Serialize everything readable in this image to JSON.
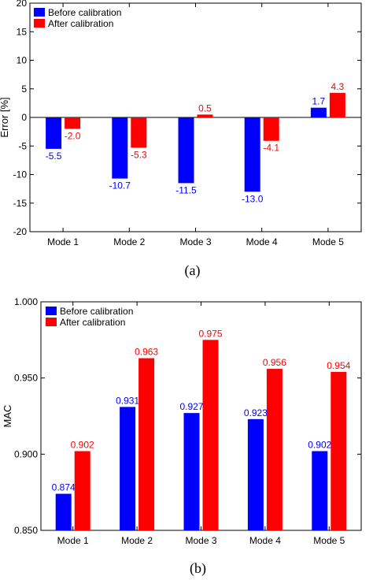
{
  "colors": {
    "before": "#0000ff",
    "after": "#ff0000"
  },
  "chart_data": [
    {
      "type": "bar",
      "caption": "(a)",
      "ylabel": "Error [%]",
      "ylim": [
        -20,
        20
      ],
      "yticks": [
        20,
        15,
        10,
        5,
        0,
        -5,
        -10,
        -15,
        -20
      ],
      "ytick_labels": [
        "20",
        "15",
        "10",
        "5",
        "0",
        "-5",
        "-10",
        "-15",
        "-20"
      ],
      "categories": [
        "Mode 1",
        "Mode 2",
        "Mode 3",
        "Mode 4",
        "Mode 5"
      ],
      "series": [
        {
          "name": "Before calibration",
          "values": [
            -5.5,
            -10.7,
            -11.5,
            -13.0,
            1.7
          ],
          "labels": [
            "-5.5",
            "-10.7",
            "-11.5",
            "-13.0",
            "1.7"
          ]
        },
        {
          "name": "After calibration",
          "values": [
            -2.0,
            -5.3,
            0.5,
            -4.1,
            4.3
          ],
          "labels": [
            "-2.0",
            "-5.3",
            "0.5",
            "-4.1",
            "4.3"
          ]
        }
      ],
      "legend": "top-left"
    },
    {
      "type": "bar",
      "caption": "(b)",
      "ylabel": "MAC",
      "ylim": [
        0.85,
        1.0
      ],
      "yticks": [
        1.0,
        0.95,
        0.9,
        0.85
      ],
      "ytick_labels": [
        "1.000",
        "0.950",
        "0.900",
        "0.850"
      ],
      "categories": [
        "Mode 1",
        "Mode 2",
        "Mode 3",
        "Mode 4",
        "Mode 5"
      ],
      "series": [
        {
          "name": "Before calibration",
          "values": [
            0.874,
            0.931,
            0.927,
            0.923,
            0.902
          ],
          "labels": [
            "0.874",
            "0.931",
            "0.927",
            "0.923",
            "0.902"
          ]
        },
        {
          "name": "After calibration",
          "values": [
            0.902,
            0.963,
            0.975,
            0.956,
            0.954
          ],
          "labels": [
            "0.902",
            "0.963",
            "0.975",
            "0.956",
            "0.954"
          ]
        }
      ],
      "legend": "top-left"
    }
  ]
}
